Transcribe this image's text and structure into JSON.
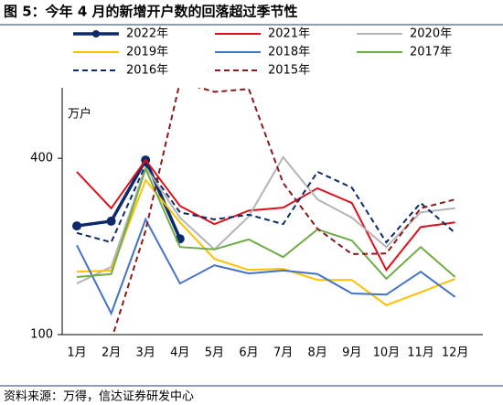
{
  "chart_data": {
    "type": "line",
    "title": "图 5：今年 4 月的新增开户数的回落超过季节性",
    "y_label": "万户",
    "source": "资料来源：万得，信达证券研发中心",
    "categories": [
      "1月",
      "2月",
      "3月",
      "4月",
      "5月",
      "6月",
      "7月",
      "8月",
      "9月",
      "10月",
      "11月",
      "12月"
    ],
    "ylim": [
      100,
      520
    ],
    "yticks": [
      100,
      400
    ],
    "series": [
      {
        "name": "2022年",
        "color": "#0b2a6b",
        "style": "marker",
        "values": [
          285,
          293,
          397,
          263,
          null,
          null,
          null,
          null,
          null,
          null,
          null,
          null
        ]
      },
      {
        "name": "2021年",
        "color": "#e0101a",
        "style": "solid",
        "values": [
          377,
          315,
          397,
          319,
          288,
          311,
          316,
          349,
          324,
          210,
          283,
          291
        ]
      },
      {
        "name": "2020年",
        "color": "#b4b4b4",
        "style": "solid",
        "values": [
          187,
          215,
          385,
          299,
          245,
          301,
          402,
          330,
          299,
          249,
          308,
          315
        ]
      },
      {
        "name": "2019年",
        "color": "#ffc000",
        "style": "solid",
        "values": [
          207,
          209,
          363,
          291,
          229,
          210,
          212,
          193,
          193,
          150,
          172,
          195
        ]
      },
      {
        "name": "2018年",
        "color": "#4472c4",
        "style": "solid",
        "values": [
          252,
          136,
          296,
          187,
          218,
          204,
          209,
          203,
          170,
          168,
          207,
          164
        ]
      },
      {
        "name": "2017年",
        "color": "#70ad47",
        "style": "solid",
        "values": [
          198,
          203,
          382,
          249,
          245,
          262,
          232,
          279,
          260,
          195,
          249,
          198
        ]
      },
      {
        "name": "2016年",
        "color": "#0b2a6b",
        "style": "dashed",
        "values": [
          273,
          257,
          389,
          308,
          296,
          304,
          288,
          377,
          350,
          257,
          324,
          273
        ]
      },
      {
        "name": "2015年",
        "color": "#8b1a1a",
        "style": "dashed",
        "values": [
          null,
          90,
          277,
          530,
          513,
          518,
          358,
          280,
          237,
          238,
          315,
          330
        ]
      }
    ]
  }
}
